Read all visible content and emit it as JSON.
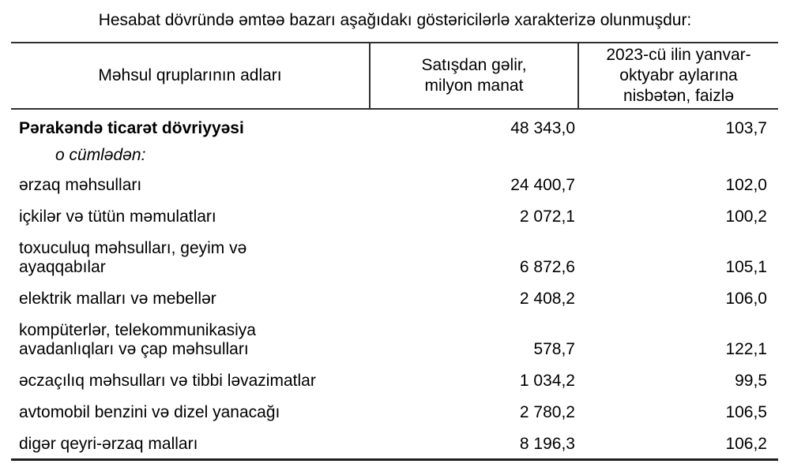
{
  "title": "Hesabat dövründə əmtəə bazarı aşağıdakı göstəricilərlə xarakterizə olunmuşdur:",
  "table": {
    "headers": {
      "products": "Məhsul qruplarının adları",
      "revenue": "Satışdan gəlir,\nmilyon manat",
      "percent": "2023-cü ilin yanvar-\noktyabr aylarına\nnisbətən, faizlə"
    },
    "rows": [
      {
        "name": "Pərakəndə ticarət dövriyyəsi",
        "revenue": "48 343,0",
        "percent": "103,7"
      },
      {
        "name": "o cümlədən:",
        "revenue": "",
        "percent": ""
      },
      {
        "name": "ərzaq məhsulları",
        "revenue": "24 400,7",
        "percent": "102,0"
      },
      {
        "name": "içkilər və tütün məmulatları",
        "revenue": "2 072,1",
        "percent": "100,2"
      },
      {
        "name": "toxuculuq məhsulları, geyim və\nayaqqabılar",
        "revenue": "6 872,6",
        "percent": "105,1"
      },
      {
        "name": "elektrik malları və mebellər",
        "revenue": "2 408,2",
        "percent": "106,0"
      },
      {
        "name": "kompüterlər, telekommunikasiya\navadanlıqları və çap məhsulları",
        "revenue": "578,7",
        "percent": "122,1"
      },
      {
        "name": "əczaçılıq məhsulları və tibbi ləvazimatlar",
        "revenue": "1 034,2",
        "percent": "99,5"
      },
      {
        "name": "avtomobil benzini və dizel yanacağı",
        "revenue": "2 780,2",
        "percent": "106,5"
      },
      {
        "name": "digər qeyri-ərzaq malları",
        "revenue": "8 196,3",
        "percent": "106,2"
      }
    ]
  }
}
